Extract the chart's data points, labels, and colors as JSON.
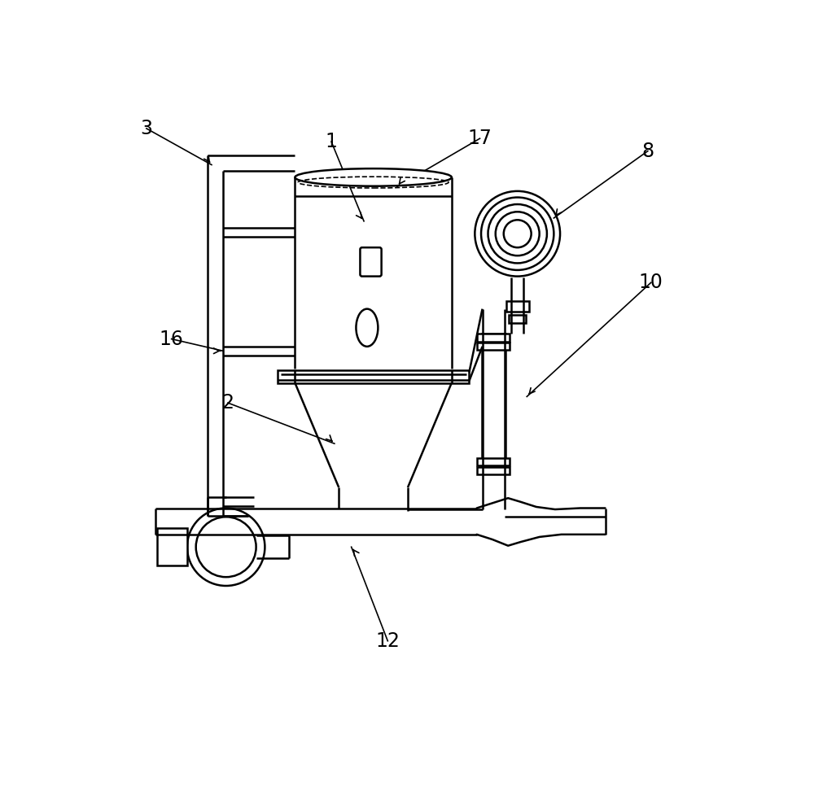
{
  "bg_color": "#ffffff",
  "line_color": "#000000",
  "lw": 1.8,
  "lw_thin": 1.2,
  "fig_width": 10.0,
  "fig_height": 9.82
}
